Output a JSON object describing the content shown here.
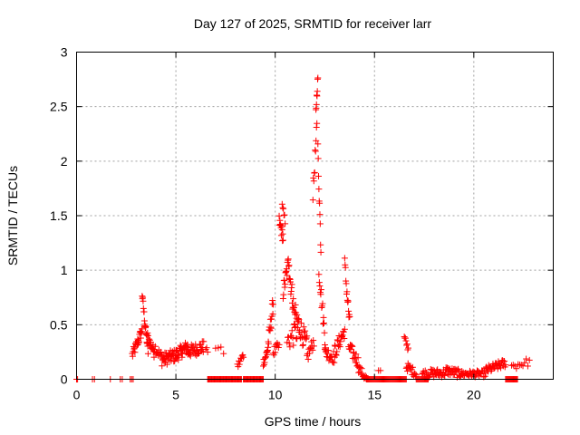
{
  "chart_data": {
    "type": "scatter",
    "title": "Day 127 of 2025, SRMTID for receiver larr",
    "xlabel": "GPS time / hours",
    "ylabel": "SRMTID / TECUs",
    "xlim": [
      0,
      24
    ],
    "ylim": [
      0,
      3
    ],
    "xticks": [
      0,
      5,
      10,
      15,
      20
    ],
    "yticks": [
      0,
      0.5,
      1,
      1.5,
      2,
      2.5,
      3
    ],
    "grid": true,
    "marker": "+",
    "series_color": "#ff0000",
    "segments": [
      {
        "x0": 0.0,
        "x1": 0.05,
        "y0": 0.0,
        "y1": 0.0,
        "n": 2
      },
      {
        "x0": 0.8,
        "x1": 0.9,
        "y0": 0.0,
        "y1": 0.0,
        "n": 2
      },
      {
        "x0": 1.7,
        "x1": 1.8,
        "y0": 0.0,
        "y1": 0.0,
        "n": 1
      },
      {
        "x0": 2.2,
        "x1": 2.3,
        "y0": 0.0,
        "y1": 0.0,
        "n": 2
      },
      {
        "x0": 2.7,
        "x1": 2.85,
        "y0": 0.0,
        "y1": 0.0,
        "n": 3
      },
      {
        "x0": 2.8,
        "x1": 3.1,
        "y0": 0.22,
        "y1": 0.35,
        "n": 14,
        "noise": 0.05
      },
      {
        "x0": 3.1,
        "x1": 3.3,
        "y0": 0.35,
        "y1": 0.45,
        "n": 10,
        "noise": 0.05
      },
      {
        "x0": 3.3,
        "x1": 3.45,
        "y0": 0.78,
        "y1": 0.5,
        "n": 10,
        "noise": 0.04
      },
      {
        "x0": 3.45,
        "x1": 3.6,
        "y0": 0.5,
        "y1": 0.25,
        "n": 10,
        "noise": 0.04
      },
      {
        "x0": 3.55,
        "x1": 3.9,
        "y0": 0.4,
        "y1": 0.25,
        "n": 16,
        "noise": 0.05
      },
      {
        "x0": 3.9,
        "x1": 4.3,
        "y0": 0.3,
        "y1": 0.2,
        "n": 14,
        "noise": 0.05
      },
      {
        "x0": 4.3,
        "x1": 5.0,
        "y0": 0.18,
        "y1": 0.22,
        "n": 34,
        "noise": 0.06
      },
      {
        "x0": 5.0,
        "x1": 5.6,
        "y0": 0.22,
        "y1": 0.3,
        "n": 30,
        "noise": 0.06
      },
      {
        "x0": 5.6,
        "x1": 6.4,
        "y0": 0.25,
        "y1": 0.3,
        "n": 36,
        "noise": 0.06
      },
      {
        "x0": 6.5,
        "x1": 6.6,
        "y0": 0.28,
        "y1": 0.26,
        "n": 3,
        "noise": 0.02
      },
      {
        "x0": 6.6,
        "x1": 8.3,
        "y0": 0.0,
        "y1": 0.0,
        "n": 44
      },
      {
        "x0": 7.0,
        "x1": 7.4,
        "y0": 0.3,
        "y1": 0.25,
        "n": 4,
        "noise": 0.03
      },
      {
        "x0": 8.1,
        "x1": 8.4,
        "y0": 0.12,
        "y1": 0.22,
        "n": 10,
        "noise": 0.04
      },
      {
        "x0": 8.4,
        "x1": 9.4,
        "y0": 0.0,
        "y1": 0.0,
        "n": 26
      },
      {
        "x0": 9.4,
        "x1": 9.6,
        "y0": 0.15,
        "y1": 0.25,
        "n": 10,
        "noise": 0.04
      },
      {
        "x0": 9.6,
        "x1": 9.9,
        "y0": 0.25,
        "y1": 0.7,
        "n": 18,
        "noise": 0.08
      },
      {
        "x0": 9.9,
        "x1": 10.2,
        "y0": 0.25,
        "y1": 0.3,
        "n": 10,
        "noise": 0.05
      },
      {
        "x0": 10.2,
        "x1": 10.4,
        "y0": 1.45,
        "y1": 1.3,
        "n": 12,
        "noise": 0.06
      },
      {
        "x0": 10.35,
        "x1": 10.5,
        "y0": 1.58,
        "y1": 1.45,
        "n": 6,
        "noise": 0.04
      },
      {
        "x0": 10.4,
        "x1": 10.7,
        "y0": 0.8,
        "y1": 1.1,
        "n": 16,
        "noise": 0.08
      },
      {
        "x0": 10.7,
        "x1": 11.0,
        "y0": 1.0,
        "y1": 0.55,
        "n": 18,
        "noise": 0.1
      },
      {
        "x0": 10.6,
        "x1": 11.2,
        "y0": 0.35,
        "y1": 0.45,
        "n": 18,
        "noise": 0.1
      },
      {
        "x0": 11.0,
        "x1": 11.6,
        "y0": 0.6,
        "y1": 0.3,
        "n": 26,
        "noise": 0.1
      },
      {
        "x0": 11.6,
        "x1": 11.95,
        "y0": 0.2,
        "y1": 0.35,
        "n": 12,
        "noise": 0.06
      },
      {
        "x0": 11.9,
        "x1": 12.1,
        "y0": 1.7,
        "y1": 2.3,
        "n": 10,
        "noise": 0.08
      },
      {
        "x0": 12.05,
        "x1": 12.15,
        "y0": 2.45,
        "y1": 2.77,
        "n": 8,
        "noise": 0.04
      },
      {
        "x0": 12.15,
        "x1": 12.3,
        "y0": 2.1,
        "y1": 1.2,
        "n": 10,
        "noise": 0.08
      },
      {
        "x0": 12.2,
        "x1": 12.55,
        "y0": 1.0,
        "y1": 0.3,
        "n": 16,
        "noise": 0.08
      },
      {
        "x0": 12.5,
        "x1": 13.0,
        "y0": 0.25,
        "y1": 0.2,
        "n": 18,
        "noise": 0.06
      },
      {
        "x0": 13.0,
        "x1": 13.5,
        "y0": 0.25,
        "y1": 0.45,
        "n": 20,
        "noise": 0.07
      },
      {
        "x0": 13.5,
        "x1": 13.75,
        "y0": 1.05,
        "y1": 0.5,
        "n": 14,
        "noise": 0.08
      },
      {
        "x0": 13.7,
        "x1": 14.2,
        "y0": 0.3,
        "y1": 0.15,
        "n": 20,
        "noise": 0.06
      },
      {
        "x0": 14.2,
        "x1": 14.6,
        "y0": 0.1,
        "y1": 0.0,
        "n": 14,
        "noise": 0.04
      },
      {
        "x0": 14.6,
        "x1": 16.6,
        "y0": 0.0,
        "y1": 0.0,
        "n": 46
      },
      {
        "x0": 15.2,
        "x1": 15.3,
        "y0": 0.08,
        "y1": 0.08,
        "n": 2
      },
      {
        "x0": 16.5,
        "x1": 16.7,
        "y0": 0.38,
        "y1": 0.28,
        "n": 8,
        "noise": 0.03
      },
      {
        "x0": 16.6,
        "x1": 17.1,
        "y0": 0.12,
        "y1": 0.05,
        "n": 18,
        "noise": 0.04
      },
      {
        "x0": 17.1,
        "x1": 17.7,
        "y0": 0.0,
        "y1": 0.0,
        "n": 14
      },
      {
        "x0": 17.4,
        "x1": 18.6,
        "y0": 0.05,
        "y1": 0.06,
        "n": 40,
        "noise": 0.04
      },
      {
        "x0": 18.6,
        "x1": 19.3,
        "y0": 0.08,
        "y1": 0.05,
        "n": 26,
        "noise": 0.04
      },
      {
        "x0": 19.3,
        "x1": 20.6,
        "y0": 0.05,
        "y1": 0.05,
        "n": 40,
        "noise": 0.03
      },
      {
        "x0": 20.6,
        "x1": 21.6,
        "y0": 0.08,
        "y1": 0.15,
        "n": 34,
        "noise": 0.04
      },
      {
        "x0": 21.6,
        "x1": 22.2,
        "y0": 0.0,
        "y1": 0.0,
        "n": 14
      },
      {
        "x0": 21.9,
        "x1": 22.8,
        "y0": 0.12,
        "y1": 0.16,
        "n": 12,
        "noise": 0.04
      }
    ]
  }
}
